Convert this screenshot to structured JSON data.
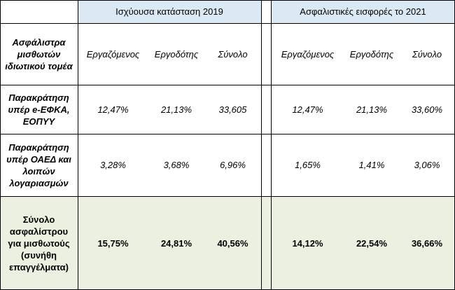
{
  "groups": {
    "current": "Ισχύουσα κατάσταση 2019",
    "future": "Ασφαλιστικές εισφορές το 2021"
  },
  "corner": "Ασφάλιστρα μισθωτών ιδιωτικού τομέα",
  "columns": {
    "employee": "Εργαζόμενος",
    "employer": "Εργοδότης",
    "total": "Σύνολο"
  },
  "rows": [
    {
      "label": "Παρακράτηση υπέρ e-ΕΦΚΑ, ΕΟΠΥΥ",
      "current": [
        "12,47%",
        "21,13%",
        "33,605"
      ],
      "future": [
        "12,47%",
        "21,13%",
        "33,60%"
      ]
    },
    {
      "label": "Παρακράτηση υπέρ ΟΑΕΔ και λοιπών λογαριασμών",
      "current": [
        "3,28%",
        "3,68%",
        "6,96%"
      ],
      "future": [
        "1,65%",
        "1,41%",
        "3,06%"
      ]
    },
    {
      "label": "Σύνολο ασφαλίστρου για μισθωτούς (συνήθη επαγγέλματα)",
      "current": [
        "15,75%",
        "24,81%",
        "40,56%"
      ],
      "future": [
        "14,12%",
        "22,54%",
        "36,66%"
      ]
    }
  ]
}
